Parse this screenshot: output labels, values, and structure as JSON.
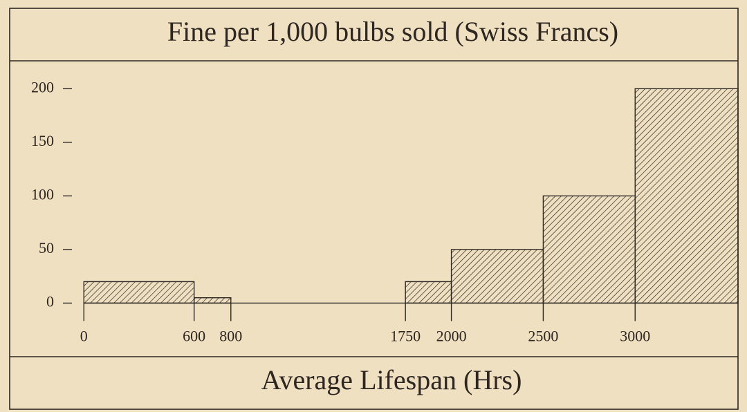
{
  "chart_data": {
    "type": "histogram",
    "title": "Fine per 1,000 bulbs sold (Swiss Francs)",
    "x_label": "Average Lifespan (Hrs)",
    "bins": [
      0,
      600,
      800,
      1750,
      2000,
      2500,
      3000,
      3560
    ],
    "values": [
      20,
      5,
      0,
      20,
      50,
      100,
      200
    ],
    "xlim": [
      -400,
      3560
    ],
    "ylim": [
      -50,
      226
    ],
    "xticks": [
      0,
      600,
      800,
      1750,
      2000,
      2500,
      3000
    ],
    "yticks": [
      0,
      50,
      100,
      150,
      200
    ],
    "color": "#2e2620",
    "background": "#efe0c2"
  }
}
